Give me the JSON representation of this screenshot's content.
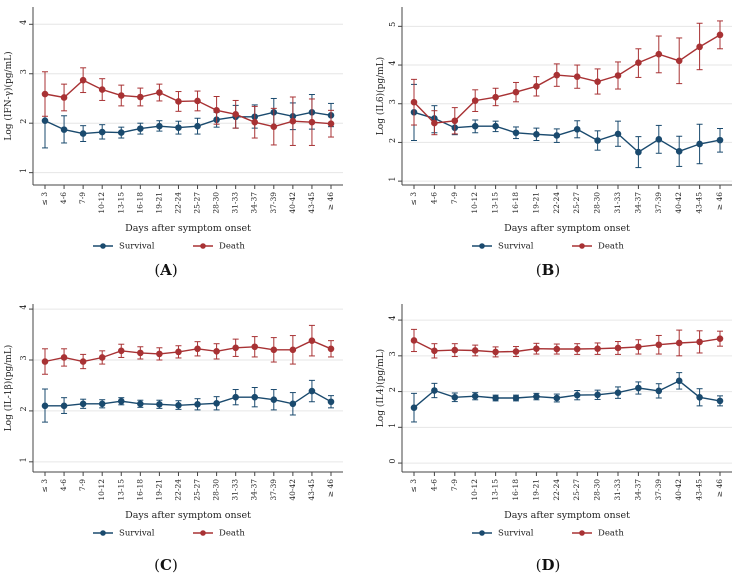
{
  "colors": {
    "survival": "#1a4a6e",
    "death": "#a83234",
    "axis": "#444444",
    "grid": "#e6e6e6"
  },
  "chart_data": [
    {
      "type": "line",
      "panel_label": "(A)",
      "label_letter": "A",
      "ylabel": "Log (IFN-γ)(pg/mL)",
      "xlabel": "Days after symptom onset",
      "ylim": [
        0.75,
        4.35
      ],
      "yticks": [
        "1",
        "2",
        "3",
        "4"
      ],
      "categories": [
        "≤ 3",
        "4-6",
        "7-9",
        "10-12",
        "13-15",
        "16-18",
        "19-21",
        "22-24",
        "25-27",
        "28-30",
        "31-33",
        "34-37",
        "37-39",
        "40-42",
        "43-45",
        "≥ 46"
      ],
      "legend": [
        "Survival",
        "Death"
      ],
      "series": [
        {
          "name": "Survival",
          "values": [
            2.05,
            1.87,
            1.79,
            1.82,
            1.81,
            1.89,
            1.94,
            1.91,
            1.94,
            2.07,
            2.13,
            2.13,
            2.22,
            2.14,
            2.22,
            2.16
          ],
          "lower": [
            1.5,
            1.6,
            1.63,
            1.68,
            1.7,
            1.78,
            1.84,
            1.78,
            1.78,
            1.92,
            1.9,
            1.9,
            1.95,
            1.87,
            1.88,
            1.93
          ],
          "upper": [
            2.6,
            2.15,
            1.95,
            1.97,
            1.92,
            2.0,
            2.05,
            2.04,
            2.1,
            2.22,
            2.36,
            2.37,
            2.5,
            2.41,
            2.58,
            2.4
          ]
        },
        {
          "name": "Death",
          "values": [
            2.59,
            2.52,
            2.87,
            2.68,
            2.56,
            2.53,
            2.62,
            2.44,
            2.45,
            2.26,
            2.18,
            2.02,
            1.93,
            2.04,
            2.02,
            1.99
          ],
          "lower": [
            2.14,
            2.25,
            2.62,
            2.46,
            2.35,
            2.35,
            2.45,
            2.24,
            2.25,
            1.98,
            1.9,
            1.7,
            1.56,
            1.55,
            1.55,
            1.72
          ],
          "upper": [
            3.04,
            2.79,
            3.12,
            2.9,
            2.77,
            2.71,
            2.79,
            2.64,
            2.65,
            2.54,
            2.46,
            2.34,
            2.3,
            2.53,
            2.49,
            2.26
          ]
        }
      ]
    },
    {
      "type": "line",
      "panel_label": "(B)",
      "label_letter": "B",
      "ylabel": "Log (IL6)(pg/mL)",
      "xlabel": "Days after symptom onset",
      "ylim": [
        0.9,
        5.5
      ],
      "yticks": [
        "1",
        "2",
        "3",
        "4",
        "5"
      ],
      "categories": [
        "≤ 3",
        "4-6",
        "7-9",
        "10-12",
        "13-15",
        "16-18",
        "19-21",
        "22-24",
        "25-27",
        "28-30",
        "31-33",
        "34-37",
        "37-39",
        "40-42",
        "43-45",
        "≥ 46"
      ],
      "legend": [
        "Survival",
        "Death"
      ],
      "series": [
        {
          "name": "Survival",
          "values": [
            2.78,
            2.62,
            2.38,
            2.42,
            2.42,
            2.25,
            2.21,
            2.18,
            2.34,
            2.05,
            2.22,
            1.75,
            2.08,
            1.77,
            1.96,
            2.06
          ],
          "lower": [
            2.05,
            2.25,
            2.2,
            2.25,
            2.28,
            2.1,
            2.05,
            2.0,
            2.12,
            1.8,
            1.9,
            1.35,
            1.72,
            1.38,
            1.45,
            1.75
          ],
          "upper": [
            3.5,
            2.95,
            2.55,
            2.58,
            2.55,
            2.4,
            2.37,
            2.35,
            2.56,
            2.3,
            2.55,
            2.15,
            2.44,
            2.16,
            2.47,
            2.36
          ]
        },
        {
          "name": "Death",
          "values": [
            3.04,
            2.5,
            2.56,
            3.08,
            3.17,
            3.3,
            3.45,
            3.74,
            3.7,
            3.57,
            3.73,
            4.06,
            4.28,
            4.11,
            4.47,
            4.78
          ],
          "lower": [
            2.45,
            2.2,
            2.22,
            2.8,
            2.95,
            3.05,
            3.2,
            3.45,
            3.4,
            3.25,
            3.38,
            3.68,
            3.8,
            3.52,
            3.88,
            4.42
          ],
          "upper": [
            3.63,
            2.82,
            2.9,
            3.36,
            3.4,
            3.55,
            3.7,
            4.03,
            4.0,
            3.9,
            4.08,
            4.42,
            4.75,
            4.7,
            5.08,
            5.14
          ]
        }
      ]
    },
    {
      "type": "line",
      "panel_label": "(C)",
      "label_letter": "C",
      "ylabel": "Log (IL-1β)(pg/mL)",
      "xlabel": "Days after symptom onset",
      "ylim": [
        0.8,
        4.1
      ],
      "yticks": [
        "1",
        "2",
        "3",
        "4"
      ],
      "categories": [
        "≤ 3",
        "4-6",
        "7-9",
        "10-12",
        "13-15",
        "16-18",
        "19-21",
        "22-24",
        "25-27",
        "28-30",
        "31-33",
        "34-37",
        "37-39",
        "40-42",
        "43-45",
        "≥ 46"
      ],
      "legend": [
        "Survival",
        "Death"
      ],
      "series": [
        {
          "name": "Survival",
          "values": [
            2.1,
            2.1,
            2.14,
            2.14,
            2.19,
            2.14,
            2.13,
            2.11,
            2.13,
            2.15,
            2.27,
            2.27,
            2.22,
            2.14,
            2.39,
            2.18
          ],
          "lower": [
            1.78,
            1.95,
            2.05,
            2.06,
            2.12,
            2.07,
            2.05,
            2.03,
            2.02,
            2.02,
            2.12,
            2.08,
            2.02,
            1.92,
            2.18,
            2.06
          ],
          "upper": [
            2.43,
            2.26,
            2.23,
            2.22,
            2.26,
            2.21,
            2.21,
            2.2,
            2.24,
            2.28,
            2.42,
            2.46,
            2.42,
            2.36,
            2.6,
            2.3
          ]
        },
        {
          "name": "Death",
          "values": [
            2.97,
            3.05,
            2.97,
            3.05,
            3.18,
            3.14,
            3.12,
            3.16,
            3.22,
            3.17,
            3.24,
            3.26,
            3.2,
            3.2,
            3.38,
            3.22
          ],
          "lower": [
            2.72,
            2.88,
            2.83,
            2.92,
            3.05,
            3.02,
            3.0,
            3.04,
            3.08,
            3.02,
            3.07,
            3.06,
            2.96,
            2.92,
            3.08,
            3.06
          ],
          "upper": [
            3.22,
            3.22,
            3.11,
            3.18,
            3.31,
            3.26,
            3.24,
            3.28,
            3.36,
            3.32,
            3.41,
            3.46,
            3.44,
            3.48,
            3.68,
            3.38
          ]
        }
      ]
    },
    {
      "type": "line",
      "panel_label": "(D)",
      "label_letter": "D",
      "ylabel": "Log (IL4)(pg/mL)",
      "xlabel": "Days after symptom onset",
      "ylim": [
        -0.25,
        4.45
      ],
      "yticks": [
        "0",
        "1",
        "2",
        "3",
        "4"
      ],
      "categories": [
        "≤ 3",
        "4-6",
        "7-9",
        "10-12",
        "13-15",
        "16-18",
        "19-21",
        "22-24",
        "25-27",
        "28-30",
        "31-33",
        "34-37",
        "37-39",
        "40-42",
        "43-45",
        "≥ 46"
      ],
      "legend": [
        "Survival",
        "Death"
      ],
      "series": [
        {
          "name": "Survival",
          "values": [
            1.55,
            2.03,
            1.84,
            1.87,
            1.82,
            1.82,
            1.86,
            1.82,
            1.9,
            1.91,
            1.97,
            2.1,
            2.02,
            2.3,
            1.84,
            1.74
          ],
          "lower": [
            1.15,
            1.83,
            1.72,
            1.77,
            1.74,
            1.74,
            1.77,
            1.71,
            1.77,
            1.78,
            1.81,
            1.93,
            1.82,
            2.07,
            1.6,
            1.6
          ],
          "upper": [
            1.95,
            2.23,
            1.96,
            1.97,
            1.9,
            1.9,
            1.95,
            1.93,
            2.03,
            2.04,
            2.13,
            2.27,
            2.22,
            2.53,
            2.08,
            1.88
          ]
        },
        {
          "name": "Death",
          "values": [
            3.43,
            3.14,
            3.16,
            3.15,
            3.11,
            3.12,
            3.2,
            3.19,
            3.19,
            3.2,
            3.22,
            3.25,
            3.31,
            3.36,
            3.39,
            3.48
          ],
          "lower": [
            3.12,
            2.94,
            2.98,
            3.0,
            2.97,
            2.98,
            3.05,
            3.05,
            3.04,
            3.04,
            3.04,
            3.05,
            3.05,
            3.0,
            3.08,
            3.27
          ],
          "upper": [
            3.74,
            3.34,
            3.34,
            3.3,
            3.25,
            3.26,
            3.35,
            3.33,
            3.34,
            3.36,
            3.4,
            3.45,
            3.57,
            3.72,
            3.7,
            3.69
          ]
        }
      ]
    }
  ]
}
